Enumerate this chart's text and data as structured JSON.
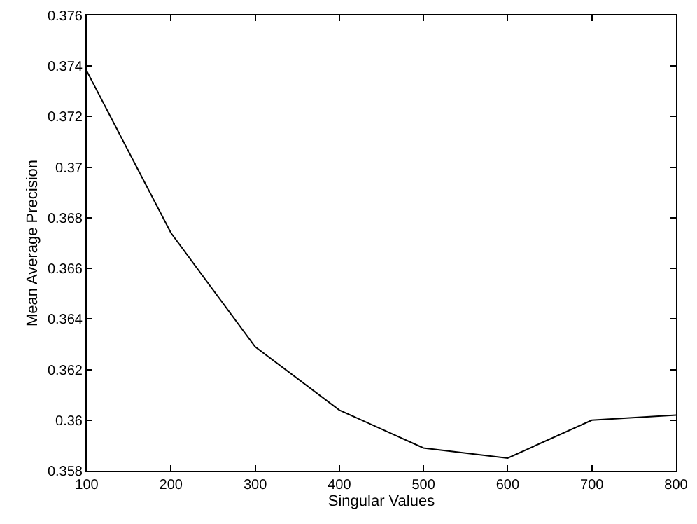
{
  "chart_data": {
    "type": "line",
    "xlabel": "Singular Values",
    "ylabel": "Mean Average Precision",
    "x": [
      100,
      200,
      300,
      400,
      500,
      600,
      700,
      800
    ],
    "series": [
      {
        "color": "#000000",
        "values": [
          0.3738,
          0.3674,
          0.3629,
          0.3604,
          0.3589,
          0.3585,
          0.36,
          0.3602
        ]
      }
    ],
    "xlim": [
      100,
      800
    ],
    "xticks": [
      100,
      200,
      300,
      400,
      500,
      600,
      700,
      800
    ],
    "ylim": [
      0.358,
      0.376
    ],
    "yticks": [
      0.358,
      0.36,
      0.362,
      0.364,
      0.366,
      0.368,
      0.37,
      0.372,
      0.374,
      0.376
    ],
    "legend": false,
    "marker": "none",
    "line_style": "solid"
  }
}
